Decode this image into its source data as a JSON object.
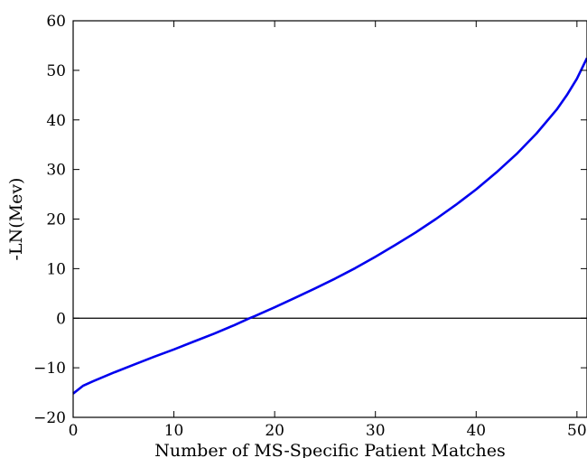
{
  "chart_data": {
    "type": "line",
    "title": "",
    "xlabel": "Number of MS-Specific Patient Matches",
    "ylabel": "-LN(Mev)",
    "xlim": [
      0,
      51
    ],
    "ylim": [
      -20,
      60
    ],
    "xticks": [
      0,
      10,
      20,
      30,
      40,
      50
    ],
    "yticks": [
      -20,
      -10,
      0,
      10,
      20,
      30,
      40,
      50,
      60
    ],
    "grid": false,
    "reference_line": {
      "y": 0,
      "color": "#000000"
    },
    "series": [
      {
        "color": "#0000ee",
        "x": [
          0,
          1,
          2,
          4,
          6,
          8,
          10,
          12,
          14,
          16,
          17.5,
          18,
          20,
          22,
          24,
          26,
          28,
          30,
          32,
          34,
          36,
          38,
          40,
          42,
          44,
          46,
          48,
          49,
          50,
          51
        ],
        "y": [
          -15.2,
          -13.6,
          -12.7,
          -11.0,
          -9.4,
          -7.8,
          -6.3,
          -4.7,
          -3.1,
          -1.4,
          0.0,
          0.4,
          2.2,
          4.1,
          6.0,
          8.0,
          10.1,
          12.4,
          14.8,
          17.3,
          20.0,
          22.9,
          26.0,
          29.4,
          33.1,
          37.3,
          42.1,
          45.0,
          48.3,
          52.5
        ]
      }
    ]
  }
}
